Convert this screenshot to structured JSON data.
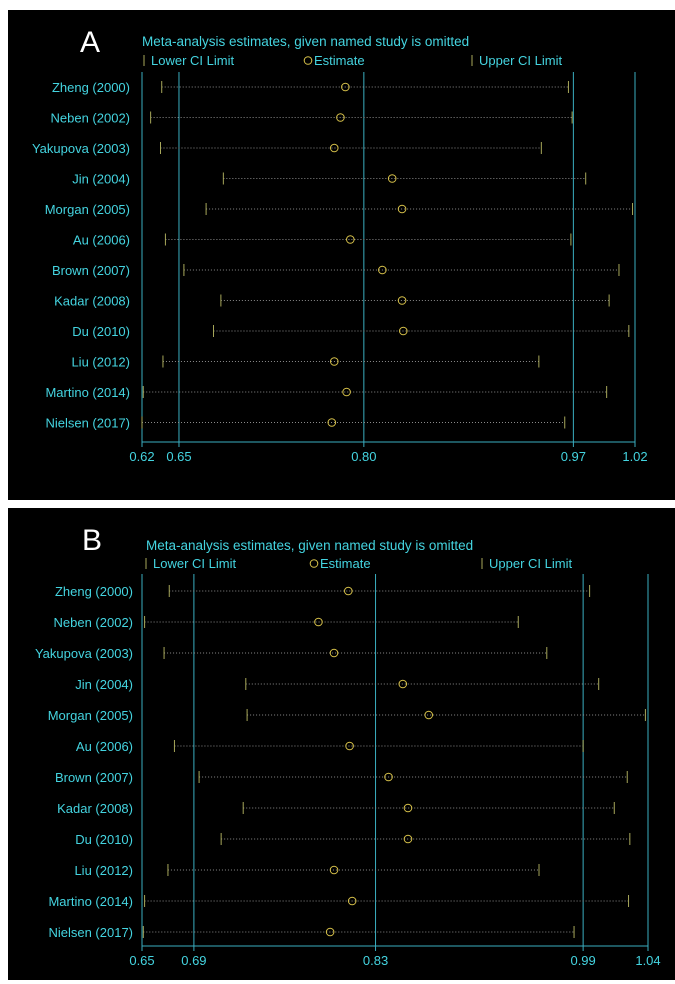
{
  "colors": {
    "background": "#000000",
    "text": "#44d4e0",
    "axis": "#3aaec0",
    "lower_ci": "#a8a85a",
    "estimate": "#d8c24a",
    "upper_ci": "#a8a85a",
    "dots": "#8a8a8a"
  },
  "chart_data": [
    {
      "panel_label": "A",
      "type": "scatter",
      "title": "Meta-analysis estimates, given named study is omitted",
      "legend": [
        "Lower CI Limit",
        "Estimate",
        "Upper CI Limit"
      ],
      "legend_position": "top",
      "xlim": [
        0.62,
        1.02
      ],
      "xticks": [
        0.62,
        0.65,
        0.8,
        0.97,
        1.02
      ],
      "xtick_labels": [
        "0.62",
        "0.65",
        "0.80",
        "0.97",
        "1.02"
      ],
      "reference_lines": [
        0.65,
        0.8,
        0.97
      ],
      "grid": false,
      "studies": [
        {
          "label": "Zheng (2000)",
          "lower": 0.636,
          "estimate": 0.785,
          "upper": 0.966
        },
        {
          "label": "Neben (2002)",
          "lower": 0.627,
          "estimate": 0.781,
          "upper": 0.969
        },
        {
          "label": "Yakupova (2003)",
          "lower": 0.635,
          "estimate": 0.776,
          "upper": 0.944
        },
        {
          "label": "Jin (2004)",
          "lower": 0.686,
          "estimate": 0.823,
          "upper": 0.98
        },
        {
          "label": "Morgan (2005)",
          "lower": 0.672,
          "estimate": 0.831,
          "upper": 1.018
        },
        {
          "label": "Au (2006)",
          "lower": 0.639,
          "estimate": 0.789,
          "upper": 0.968
        },
        {
          "label": "Brown (2007)",
          "lower": 0.654,
          "estimate": 0.815,
          "upper": 1.007
        },
        {
          "label": "Kadar (2008)",
          "lower": 0.684,
          "estimate": 0.831,
          "upper": 0.999
        },
        {
          "label": "Du (2010)",
          "lower": 0.678,
          "estimate": 0.832,
          "upper": 1.015
        },
        {
          "label": "Liu (2012)",
          "lower": 0.637,
          "estimate": 0.776,
          "upper": 0.942
        },
        {
          "label": "Martino (2014)",
          "lower": 0.621,
          "estimate": 0.786,
          "upper": 0.997
        },
        {
          "label": "Nielsen (2017)",
          "lower": 0.62,
          "estimate": 0.774,
          "upper": 0.963
        }
      ]
    },
    {
      "panel_label": "B",
      "type": "scatter",
      "title": "Meta-analysis estimates, given named study is omitted",
      "legend": [
        "Lower CI Limit",
        "Estimate",
        "Upper CI Limit"
      ],
      "legend_position": "top",
      "xlim": [
        0.65,
        1.04
      ],
      "xticks": [
        0.65,
        0.69,
        0.83,
        0.99,
        1.04
      ],
      "xtick_labels": [
        "0.65",
        "0.69",
        "0.83",
        "0.99",
        "1.04"
      ],
      "reference_lines": [
        0.69,
        0.83,
        0.99
      ],
      "grid": false,
      "studies": [
        {
          "label": "Zheng (2000)",
          "lower": 0.671,
          "estimate": 0.809,
          "upper": 0.995
        },
        {
          "label": "Neben (2002)",
          "lower": 0.652,
          "estimate": 0.786,
          "upper": 0.94
        },
        {
          "label": "Yakupova (2003)",
          "lower": 0.667,
          "estimate": 0.798,
          "upper": 0.962
        },
        {
          "label": "Jin (2004)",
          "lower": 0.73,
          "estimate": 0.851,
          "upper": 1.002
        },
        {
          "label": "Morgan (2005)",
          "lower": 0.731,
          "estimate": 0.871,
          "upper": 1.038
        },
        {
          "label": "Au (2006)",
          "lower": 0.675,
          "estimate": 0.81,
          "upper": 0.99
        },
        {
          "label": "Brown (2007)",
          "lower": 0.694,
          "estimate": 0.84,
          "upper": 1.024
        },
        {
          "label": "Kadar (2008)",
          "lower": 0.728,
          "estimate": 0.855,
          "upper": 1.014
        },
        {
          "label": "Du (2010)",
          "lower": 0.711,
          "estimate": 0.855,
          "upper": 1.026
        },
        {
          "label": "Liu (2012)",
          "lower": 0.67,
          "estimate": 0.798,
          "upper": 0.956
        },
        {
          "label": "Martino (2014)",
          "lower": 0.652,
          "estimate": 0.812,
          "upper": 1.025
        },
        {
          "label": "Nielsen (2017)",
          "lower": 0.651,
          "estimate": 0.795,
          "upper": 0.983
        }
      ]
    }
  ]
}
